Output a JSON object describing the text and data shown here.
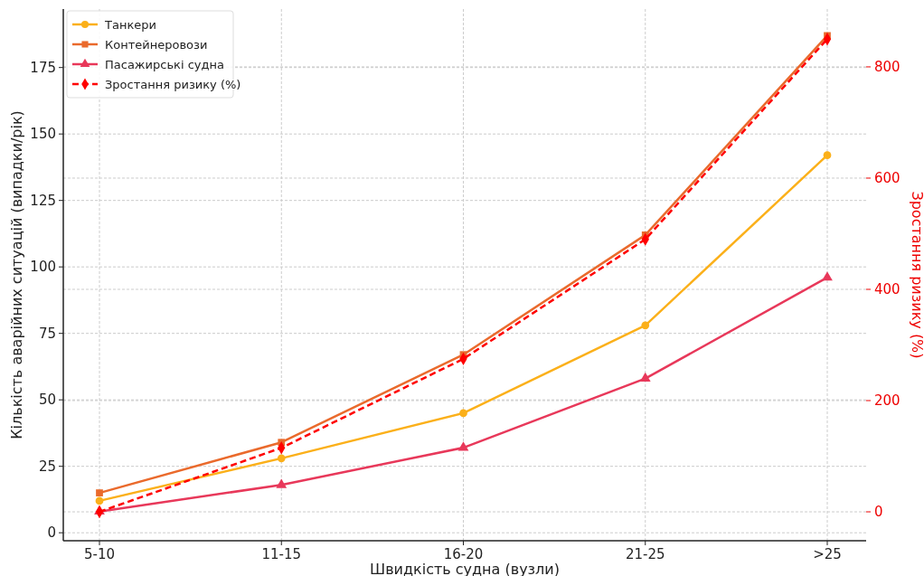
{
  "chart_data": {
    "type": "line",
    "xlabel": "Швидкість судна (вузли)",
    "ylabel": "Кількість аварійних ситуацій (випадки/рік)",
    "y2label": "Зростання ризику (%)",
    "categories": [
      "5-10",
      "11-15",
      "16-20",
      "21-25",
      ">25"
    ],
    "series": [
      {
        "name": "Танкери",
        "color": "#fbb01a",
        "marker": "circle",
        "line_style": "solid",
        "values": [
          12,
          28,
          45,
          78,
          142
        ]
      },
      {
        "name": "Контейнеровози",
        "color": "#ea6a2c",
        "marker": "square",
        "line_style": "solid",
        "values": [
          15,
          34,
          67,
          112,
          187
        ]
      },
      {
        "name": "Пасажирські судна",
        "color": "#e8385a",
        "marker": "triangle",
        "line_style": "solid",
        "values": [
          8,
          18,
          32,
          58,
          96
        ]
      },
      {
        "name": "Зростання ризику (%)",
        "color": "#ff0000",
        "marker": "diamond",
        "line_style": "dashed",
        "axis": "y2",
        "values": [
          0,
          115,
          275,
          490,
          850
        ]
      }
    ],
    "ylim": [
      -3,
      197
    ],
    "yticks": [
      0,
      25,
      50,
      75,
      100,
      125,
      150,
      175
    ],
    "y2lim": [
      -52,
      904
    ],
    "y2ticks": [
      0,
      200,
      400,
      600,
      800
    ],
    "grid": true,
    "legend": "top left"
  }
}
